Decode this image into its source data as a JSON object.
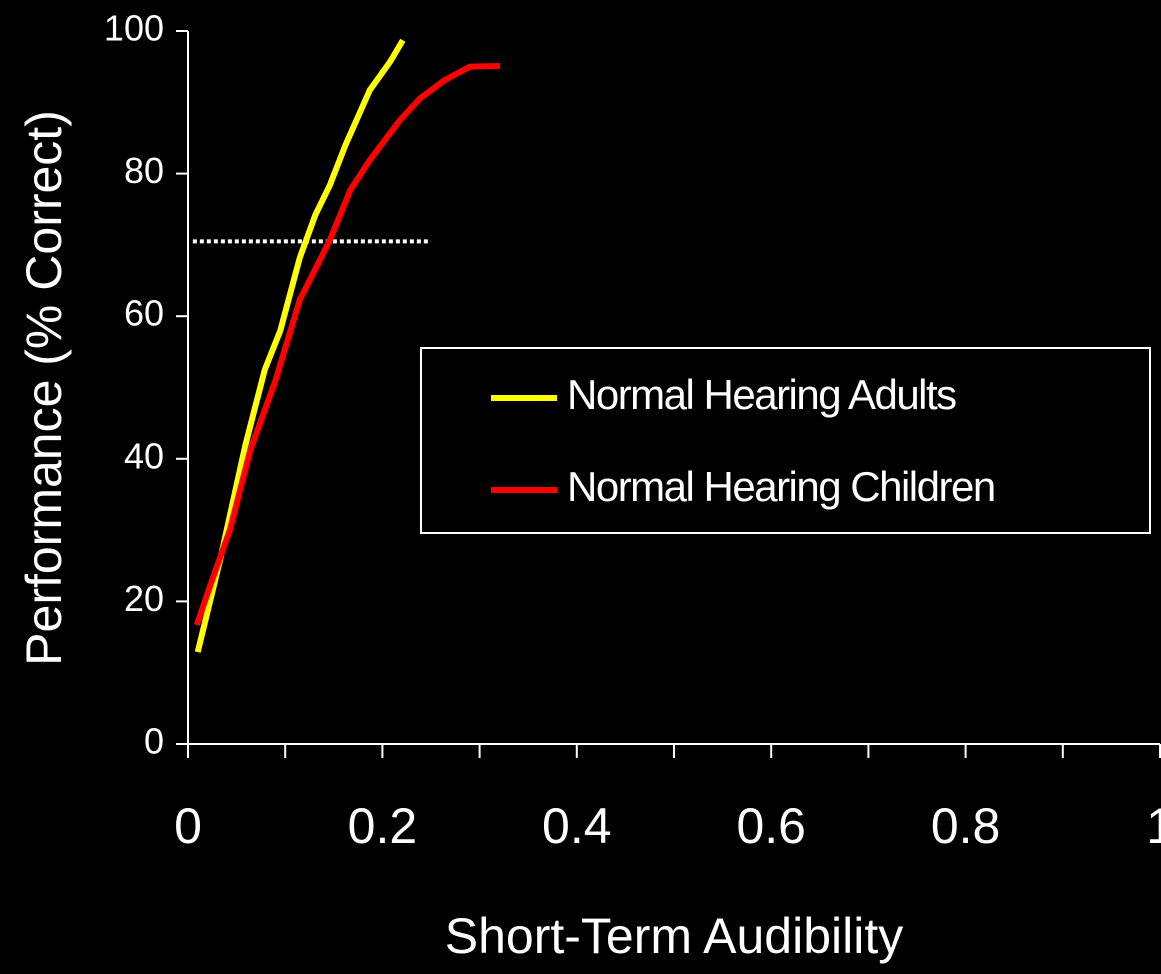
{
  "chart_data": {
    "type": "line",
    "x_label": "Short-Term Audibility",
    "y_label": "Performance (% Correct)",
    "xlim": [
      0,
      1
    ],
    "ylim": [
      0,
      100
    ],
    "xticks": [
      0,
      0.2,
      0.4,
      0.6,
      0.8,
      1
    ],
    "xminor_ticks": [
      0.1,
      0.3,
      0.5,
      0.7,
      0.9
    ],
    "yticks": [
      0,
      20,
      40,
      60,
      80,
      100
    ],
    "grid": false,
    "legend": "right",
    "reference_line": {
      "y": 70.5,
      "x": [
        0.005,
        0.25
      ],
      "color": "#ffffff",
      "style": "dotted"
    },
    "series": [
      {
        "name": "Normal Hearing Adults",
        "color": "#ffff00",
        "x": [
          0.01,
          0.033,
          0.059,
          0.079,
          0.095,
          0.115,
          0.131,
          0.146,
          0.162,
          0.187,
          0.208,
          0.221
        ],
        "values": [
          12.9,
          25.8,
          41.9,
          52.5,
          58,
          68.2,
          74.2,
          78.4,
          84,
          91.7,
          95.7,
          98.7
        ]
      },
      {
        "name": "Normal Hearing Children",
        "color": "#ff0000",
        "x": [
          0.009,
          0.023,
          0.043,
          0.064,
          0.09,
          0.115,
          0.146,
          0.167,
          0.187,
          0.218,
          0.239,
          0.264,
          0.29,
          0.321
        ],
        "values": [
          16.7,
          22.3,
          30,
          41.2,
          51,
          62.3,
          70.7,
          77.7,
          81.9,
          87.5,
          90.6,
          93.1,
          95,
          95.1
        ]
      }
    ]
  }
}
